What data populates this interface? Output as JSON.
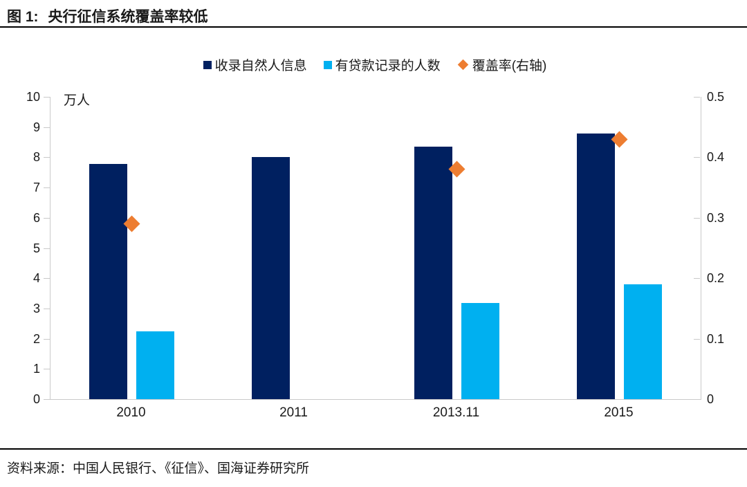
{
  "figure": {
    "label": "图 1:",
    "title": "央行征信系统覆盖率较低",
    "source_label": "资料来源：",
    "source": "中国人民银行、《征信》、国海证券研究所"
  },
  "chart_data": {
    "type": "bar",
    "title": "央行征信系统覆盖率较低",
    "categories": [
      "2010",
      "2011",
      "2013.11",
      "2015"
    ],
    "series": [
      {
        "name": "收录自然人信息",
        "type": "bar",
        "axis": "left",
        "color": "#002060",
        "values": [
          7.77,
          8.0,
          8.35,
          8.78
        ]
      },
      {
        "name": "有贷款记录的人数",
        "type": "bar",
        "axis": "left",
        "color": "#00B0F0",
        "values": [
          2.25,
          null,
          3.17,
          3.8
        ]
      },
      {
        "name": "覆盖率(右轴)",
        "type": "scatter",
        "marker": "diamond",
        "axis": "right",
        "color": "#ED7D31",
        "values": [
          0.29,
          null,
          0.38,
          0.43
        ]
      }
    ],
    "left_axis": {
      "unit": "万人",
      "min": 0,
      "max": 10,
      "ticks": [
        0,
        1,
        2,
        3,
        4,
        5,
        6,
        7,
        8,
        9,
        10
      ]
    },
    "right_axis": {
      "min": 0,
      "max": 0.5,
      "ticks": [
        "0",
        "0.1",
        "0.2",
        "0.3",
        "0.4",
        "0.5"
      ]
    },
    "legend_position": "top",
    "grid": false
  }
}
